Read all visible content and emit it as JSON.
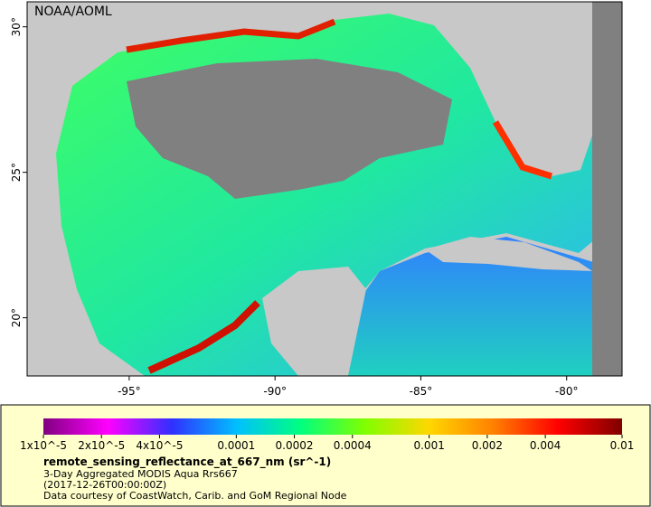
{
  "map": {
    "watermark": "NOAA/AOML",
    "xlim": [
      -98.5,
      -78.1
    ],
    "ylim": [
      18,
      30.86
    ],
    "xticks": [
      {
        "value": -95,
        "label": "-95°"
      },
      {
        "value": -90,
        "label": "-90°"
      },
      {
        "value": -85,
        "label": "-85°"
      },
      {
        "value": -80,
        "label": "-80°"
      }
    ],
    "yticks": [
      {
        "value": 20,
        "label": "20°"
      },
      {
        "value": 25,
        "label": "25°"
      },
      {
        "value": 30,
        "label": "30°"
      }
    ]
  },
  "colorbar": {
    "scale": "log",
    "lim": [
      1e-05,
      0.01
    ],
    "ticks": [
      {
        "value": 1e-05,
        "label": "1x10^-5"
      },
      {
        "value": 2e-05,
        "label": "2x10^-5"
      },
      {
        "value": 4e-05,
        "label": "4x10^-5"
      },
      0.0001,
      0.0002,
      0.0004,
      0.001,
      0.002,
      0.004,
      0.01
    ],
    "colors": [
      "#800080",
      "#ff00ff",
      "#3030ff",
      "#00bfff",
      "#00ff80",
      "#80ff00",
      "#ffd700",
      "#ff8000",
      "#ff0000",
      "#800000"
    ]
  },
  "legend": {
    "variable": "remote_sensing_reflectance_at_667_nm (sr^-1)",
    "lines": [
      "3-Day Aggregated MODIS Aqua Rrs667",
      "(2017-12-26T00:00:00Z)",
      "Data courtesy of CoastWatch, Carib. and GoM Regional Node"
    ]
  }
}
